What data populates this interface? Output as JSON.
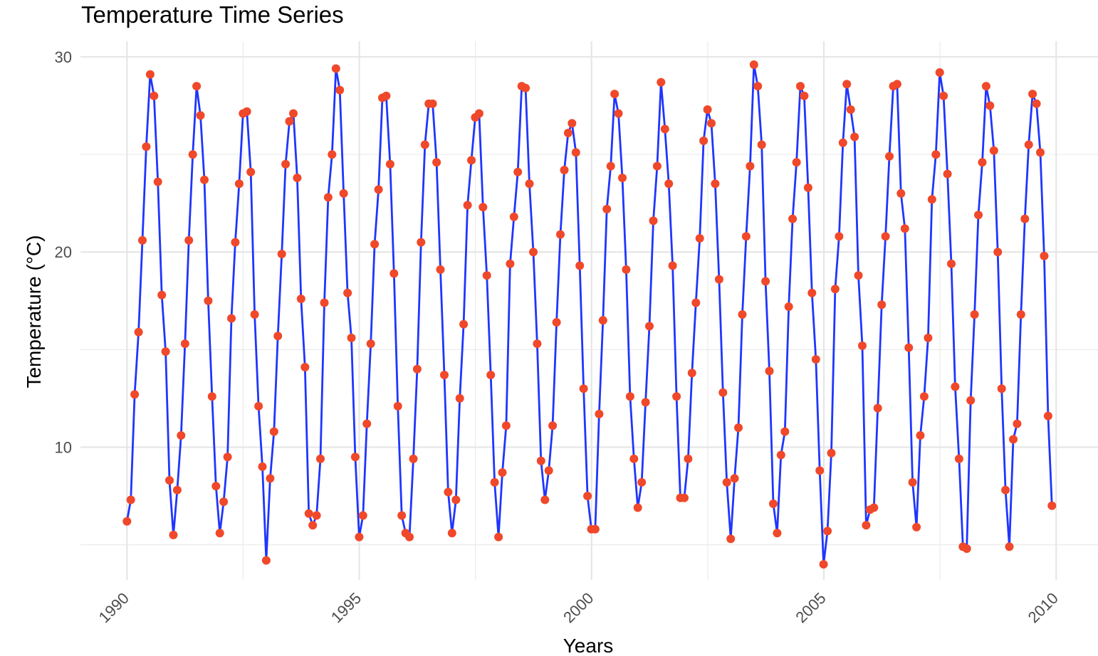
{
  "chart_data": {
    "type": "line",
    "title": "Temperature Time Series",
    "xlabel": "Years",
    "ylabel": "Temperature (°C)",
    "xlim": [
      1989.0,
      2010.9
    ],
    "ylim": [
      3.2,
      30.8
    ],
    "x_ticks": [
      1990,
      1995,
      2000,
      2005,
      2010
    ],
    "y_ticks": [
      10,
      20,
      30
    ],
    "grid": true,
    "legend": "none",
    "line_color": "#1f35ff",
    "point_color": "#f0482a",
    "x_start": 1990.0,
    "x_step": 0.0833,
    "series": [
      {
        "values": [
          6.2,
          7.3,
          12.7,
          15.9,
          20.6,
          25.4,
          29.1,
          28.0,
          23.6,
          17.8,
          14.9,
          8.3,
          5.5,
          7.8,
          10.6,
          15.3,
          20.6,
          25.0,
          28.5,
          27.0,
          23.7,
          17.5,
          12.6,
          8.0,
          5.6,
          7.2,
          9.5,
          16.6,
          20.5,
          23.5,
          27.1,
          27.2,
          24.1,
          16.8,
          12.1,
          9.0,
          4.2,
          8.4,
          10.8,
          15.7,
          19.9,
          24.5,
          26.7,
          27.1,
          23.8,
          17.6,
          14.1,
          6.6,
          6.0,
          6.5,
          9.4,
          17.4,
          22.8,
          25.0,
          29.4,
          28.3,
          23.0,
          17.9,
          15.6,
          9.5,
          5.4,
          6.5,
          11.2,
          15.3,
          20.4,
          23.2,
          27.9,
          28.0,
          24.5,
          18.9,
          12.1,
          6.5,
          5.6,
          5.4,
          9.4,
          14.0,
          20.5,
          25.5,
          27.6,
          27.6,
          24.6,
          19.1,
          13.7,
          7.7,
          5.6,
          7.3,
          12.5,
          16.3,
          22.4,
          24.7,
          26.9,
          27.1,
          22.3,
          18.8,
          13.7,
          8.2,
          5.4,
          8.7,
          11.1,
          19.4,
          21.8,
          24.1,
          28.5,
          28.4,
          23.5,
          20.0,
          15.3,
          9.3,
          7.3,
          8.8,
          11.1,
          16.4,
          20.9,
          24.2,
          26.1,
          26.6,
          25.1,
          19.3,
          13.0,
          7.5,
          5.8,
          5.8,
          11.7,
          16.5,
          22.2,
          24.4,
          28.1,
          27.1,
          23.8,
          19.1,
          12.6,
          9.4,
          6.9,
          8.2,
          12.3,
          16.2,
          21.6,
          24.4,
          28.7,
          26.3,
          23.5,
          19.3,
          12.6,
          7.4,
          7.4,
          9.4,
          13.8,
          17.4,
          20.7,
          25.7,
          27.3,
          26.6,
          23.5,
          18.6,
          12.8,
          8.2,
          5.3,
          8.4,
          11.0,
          16.8,
          20.8,
          24.4,
          29.6,
          28.5,
          25.5,
          18.5,
          13.9,
          7.1,
          5.6,
          9.6,
          10.8,
          17.2,
          21.7,
          24.6,
          28.5,
          28.0,
          23.3,
          17.9,
          14.5,
          8.8,
          4.0,
          5.7,
          9.7,
          18.1,
          20.8,
          25.6,
          28.6,
          27.3,
          25.9,
          18.8,
          15.2,
          6.0,
          6.8,
          6.9,
          12.0,
          17.3,
          20.8,
          24.9,
          28.5,
          28.6,
          23.0,
          21.2,
          15.1,
          8.2,
          5.9,
          10.6,
          12.6,
          15.6,
          22.7,
          25.0,
          29.2,
          28.0,
          24.0,
          19.4,
          13.1,
          9.4,
          4.9,
          4.8,
          12.4,
          16.8,
          21.9,
          24.6,
          28.5,
          27.5,
          25.2,
          20.0,
          13.0,
          7.8,
          4.9,
          10.4,
          11.2,
          16.8,
          21.7,
          25.5,
          28.1,
          27.6,
          25.1,
          19.8,
          11.6,
          7.0
        ]
      }
    ]
  }
}
